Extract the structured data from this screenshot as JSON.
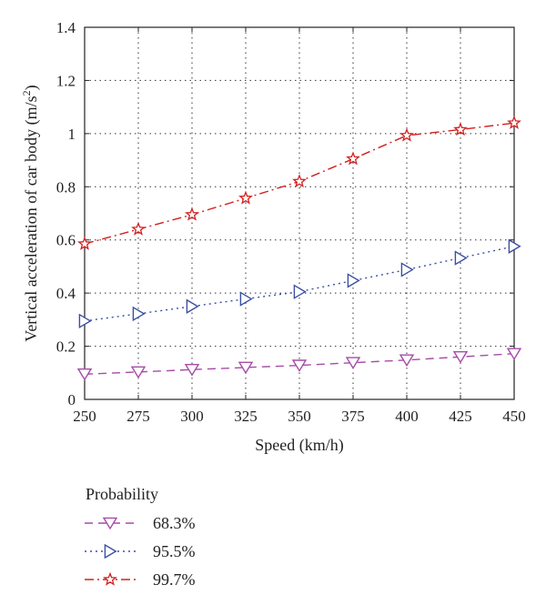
{
  "chart_data": {
    "type": "line",
    "title": "",
    "xlabel": "Speed (km/h)",
    "ylabel": "Vertical acceleration of car body (m/s",
    "ylabel_sup": "2",
    "ylabel_close": ")",
    "x": [
      250,
      275,
      300,
      325,
      350,
      375,
      400,
      425,
      450
    ],
    "xlim": [
      250,
      450
    ],
    "ylim": [
      0,
      1.4
    ],
    "xticks": [
      "250",
      "275",
      "300",
      "325",
      "350",
      "375",
      "400",
      "425",
      "450"
    ],
    "yticks": [
      "0",
      "0.2",
      "0.4",
      "0.6",
      "0.8",
      "1",
      "1.2",
      "1.4"
    ],
    "grid": true,
    "legend": {
      "title": "Probability",
      "placement": "below"
    },
    "series": [
      {
        "name": "68.3%",
        "values": [
          0.095,
          0.103,
          0.112,
          0.12,
          0.128,
          0.138,
          0.148,
          0.16,
          0.172
        ],
        "color": "#a64ca6",
        "dash": "dashed",
        "marker": "triangle-down"
      },
      {
        "name": "95.5%",
        "values": [
          0.295,
          0.322,
          0.35,
          0.378,
          0.405,
          0.447,
          0.488,
          0.532,
          0.576
        ],
        "color": "#3a4fa3",
        "dash": "dotted",
        "marker": "triangle-right"
      },
      {
        "name": "99.7%",
        "values": [
          0.585,
          0.64,
          0.695,
          0.757,
          0.82,
          0.905,
          0.993,
          1.015,
          1.04
        ],
        "color": "#d42020",
        "dash": "dashdot",
        "marker": "star"
      }
    ]
  }
}
